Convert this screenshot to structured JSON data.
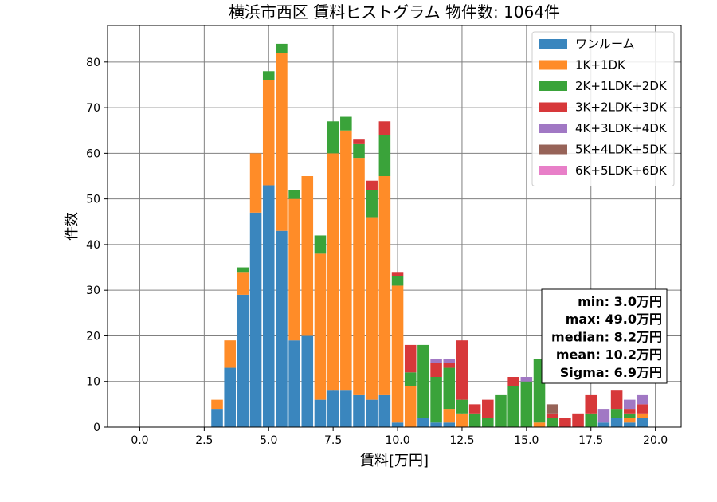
{
  "chart_data": {
    "type": "bar",
    "stacked": true,
    "title": "横浜市西区 賃料ヒストグラム 物件数: 1064件",
    "xlabel": "賃料[万円]",
    "ylabel": "件数",
    "xlim": [
      -1.25,
      21.0
    ],
    "ylim": [
      0,
      88
    ],
    "xticks": [
      0.0,
      2.5,
      5.0,
      7.5,
      10.0,
      12.5,
      15.0,
      17.5,
      20.0
    ],
    "xtick_labels": [
      "0.0",
      "2.5",
      "5.0",
      "7.5",
      "10.0",
      "12.5",
      "15.0",
      "17.5",
      "20.0"
    ],
    "yticks": [
      0,
      10,
      20,
      30,
      40,
      50,
      60,
      70,
      80
    ],
    "ytick_labels": [
      "0",
      "10",
      "20",
      "30",
      "40",
      "50",
      "60",
      "70",
      "80"
    ],
    "grid": true,
    "legend_position": "top-right",
    "bin_width": 0.5,
    "bins": [
      3.0,
      3.5,
      4.0,
      4.5,
      5.0,
      5.5,
      6.0,
      6.5,
      7.0,
      7.5,
      8.0,
      8.5,
      9.0,
      9.5,
      10.0,
      10.5,
      11.0,
      11.5,
      12.0,
      12.5,
      13.0,
      13.5,
      14.0,
      14.5,
      15.0,
      15.5,
      16.0,
      16.5,
      17.0,
      17.5,
      18.0,
      18.5,
      19.0,
      19.5
    ],
    "series": [
      {
        "name": "ワンルーム",
        "color": "#3a86be",
        "values": [
          4,
          13,
          29,
          47,
          53,
          43,
          19,
          20,
          6,
          8,
          8,
          7,
          6,
          7,
          1,
          0,
          2,
          1,
          1,
          0,
          0,
          0,
          0,
          0,
          0,
          0,
          0,
          0,
          0,
          0,
          1,
          2,
          1,
          2
        ]
      },
      {
        "name": "1K+1DK",
        "color": "#ff8c28",
        "values": [
          2,
          6,
          5,
          13,
          23,
          39,
          31,
          35,
          32,
          52,
          57,
          52,
          40,
          48,
          30,
          9,
          0,
          0,
          3,
          3,
          0,
          0,
          0,
          0,
          0,
          1,
          0,
          0,
          0,
          0,
          0,
          0,
          1,
          1
        ]
      },
      {
        "name": "2K+1LDK+2DK",
        "color": "#3aa33a",
        "values": [
          0,
          0,
          1,
          0,
          2,
          2,
          2,
          0,
          4,
          7,
          3,
          3,
          6,
          9,
          2,
          3,
          16,
          10,
          9,
          3,
          3,
          2,
          7,
          9,
          10,
          14,
          2,
          0,
          0,
          3,
          0,
          2,
          1,
          0
        ]
      },
      {
        "name": "3K+2LDK+3DK",
        "color": "#d7383a",
        "values": [
          0,
          0,
          0,
          0,
          0,
          0,
          0,
          0,
          0,
          0,
          0,
          1,
          2,
          3,
          1,
          6,
          0,
          3,
          1,
          13,
          2,
          4,
          0,
          2,
          0,
          0,
          1,
          2,
          3,
          4,
          0,
          4,
          1,
          2
        ]
      },
      {
        "name": "4K+3LDK+4DK",
        "color": "#a178c4",
        "values": [
          0,
          0,
          0,
          0,
          0,
          0,
          0,
          0,
          0,
          0,
          0,
          0,
          0,
          0,
          0,
          0,
          0,
          1,
          1,
          0,
          0,
          0,
          0,
          0,
          1,
          0,
          0,
          0,
          0,
          0,
          3,
          0,
          2,
          2
        ]
      },
      {
        "name": "5K+4LDK+5DK",
        "color": "#976358",
        "values": [
          0,
          0,
          0,
          0,
          0,
          0,
          0,
          0,
          0,
          0,
          0,
          0,
          0,
          0,
          0,
          0,
          0,
          0,
          0,
          0,
          0,
          0,
          0,
          0,
          0,
          0,
          2,
          0,
          0,
          0,
          0,
          0,
          0,
          0
        ]
      },
      {
        "name": "6K+5LDK+6DK",
        "color": "#e87fc8",
        "values": [
          0,
          0,
          0,
          0,
          0,
          0,
          0,
          0,
          0,
          0,
          0,
          0,
          0,
          0,
          0,
          0,
          0,
          0,
          0,
          0,
          0,
          0,
          0,
          0,
          0,
          0,
          0,
          0,
          0,
          0,
          0,
          0,
          0,
          0
        ]
      }
    ],
    "stats": [
      "min: 3.0万円",
      "max: 49.0万円",
      "median: 8.2万円",
      "mean: 10.2万円",
      "Sigma: 6.9万円"
    ]
  }
}
